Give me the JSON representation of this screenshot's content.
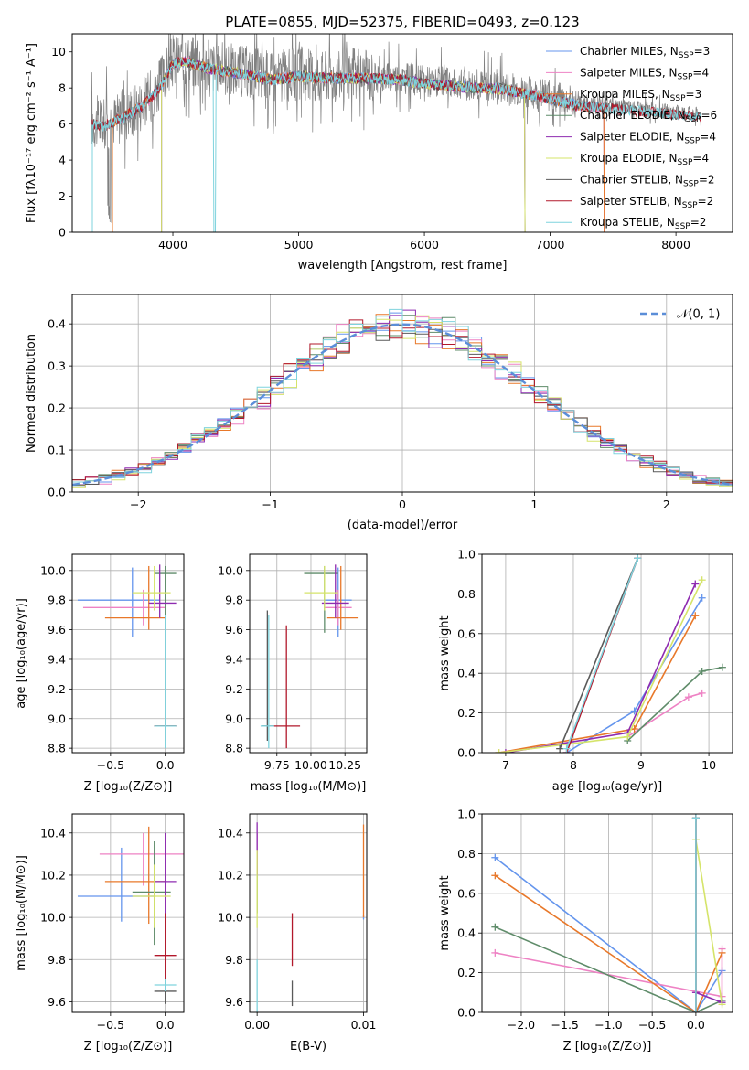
{
  "colors": {
    "Chabrier MILES": "#6495ED",
    "Salpeter MILES": "#EE82C4",
    "Kroupa MILES": "#E8782A",
    "Chabrier ELODIE": "#5F8C6A",
    "Salpeter ELODIE": "#8E2BB0",
    "Kroupa ELODIE": "#D5E46A",
    "Chabrier STELIB": "#5A5A5A",
    "Salpeter STELIB": "#B2182B",
    "Kroupa STELIB": "#7FD3DD",
    "gauss": "#5B8ED8",
    "grid": "#b0b0b0"
  },
  "chart_data": [
    {
      "id": "spectrum",
      "type": "line",
      "title": "PLATE=0855, MJD=52375, FIBERID=0493, z=0.123",
      "xlabel": "wavelength [Angstrom, rest frame]",
      "ylabel": "Flux [fλ10⁻¹⁷ erg cm⁻² s⁻¹ A⁻¹]",
      "xlim": [
        3200,
        8450
      ],
      "ylim": [
        0,
        11
      ],
      "xticks": [
        4000,
        5000,
        6000,
        7000,
        8000
      ],
      "yticks": [
        0,
        2,
        4,
        6,
        8,
        10
      ],
      "grid": false,
      "legend_position": "top-right",
      "legend": [
        {
          "label": "Chabrier MILES, N",
          "sub": "SSP",
          "suffix": "=3",
          "model": "Chabrier MILES"
        },
        {
          "label": "Salpeter MILES, N",
          "sub": "SSP",
          "suffix": "=4",
          "model": "Salpeter MILES"
        },
        {
          "label": "Kroupa MILES, N",
          "sub": "SSP",
          "suffix": "=3",
          "model": "Kroupa MILES"
        },
        {
          "label": "Chabrier ELODIE, N",
          "sub": "SSP",
          "suffix": "=6",
          "model": "Chabrier ELODIE"
        },
        {
          "label": "Salpeter ELODIE, N",
          "sub": "SSP",
          "suffix": "=4",
          "model": "Salpeter ELODIE"
        },
        {
          "label": "Kroupa ELODIE, N",
          "sub": "SSP",
          "suffix": "=4",
          "model": "Kroupa ELODIE"
        },
        {
          "label": "Chabrier STELIB, N",
          "sub": "SSP",
          "suffix": "=2",
          "model": "Chabrier STELIB"
        },
        {
          "label": "Salpeter STELIB, N",
          "sub": "SSP",
          "suffix": "=2",
          "model": "Salpeter STELIB"
        },
        {
          "label": "Kroupa STELIB, N",
          "sub": "SSP",
          "suffix": "=2",
          "model": "Kroupa STELIB"
        }
      ],
      "continuum": {
        "x": [
          3350,
          3450,
          3600,
          3700,
          3800,
          3900,
          4000,
          4100,
          4300,
          4500,
          4800,
          5000,
          5200,
          5500,
          5800,
          6000,
          6300,
          6600,
          6900,
          7200,
          7500,
          7800,
          8100,
          8200
        ],
        "y": [
          6.2,
          6.0,
          6.5,
          6.9,
          7.4,
          8.2,
          9.5,
          9.6,
          9.2,
          9.0,
          8.6,
          8.8,
          8.7,
          8.7,
          8.6,
          8.4,
          8.2,
          8.1,
          7.7,
          7.2,
          7.0,
          6.8,
          6.6,
          6.5
        ]
      },
      "data_series_note": "gray observed spectrum is noisy around the same continuum; models drop to 0 at 3510 (MILES, STELIB), 3900 (ELODIE), 4330 (STELIB Kroupa), 6800 (ELODIE), 7430 (MILES)"
    },
    {
      "id": "residuals",
      "type": "histogram",
      "xlabel": "(data-model)/error",
      "ylabel": "Normed distribution",
      "xlim": [
        -2.5,
        2.5
      ],
      "ylim": [
        0,
        0.47
      ],
      "xticks": [
        -2,
        -1,
        0,
        1,
        2
      ],
      "yticks": [
        0.0,
        0.1,
        0.2,
        0.3,
        0.4
      ],
      "grid": true,
      "legend_position": "top-right",
      "legend": {
        "label": "𝒩(0, 1)"
      },
      "bin_width": 0.1,
      "bin_start": -2.5
    },
    {
      "id": "age_vs_Z",
      "type": "scatter",
      "xlabel": "Z [log₁₀(Z/Z⊙)]",
      "ylabel": "age  [log₁₀(age/yr)]",
      "xlim": [
        -0.85,
        0.17
      ],
      "ylim": [
        8.77,
        10.11
      ],
      "xticks": [
        -0.5,
        0.0
      ],
      "xticklabels": [
        "−0.5",
        "0.0"
      ],
      "yticks": [
        8.8,
        9.0,
        9.2,
        9.4,
        9.6,
        9.8,
        10.0
      ],
      "grid": true,
      "points": [
        {
          "model": "Chabrier MILES",
          "x": -0.3,
          "xerr": [
            0.5,
            0.25
          ],
          "y": 9.8,
          "yerr": [
            0.25,
            0.22
          ]
        },
        {
          "model": "Salpeter MILES",
          "x": -0.2,
          "xerr": [
            0.55,
            0.2
          ],
          "y": 9.75,
          "yerr": [
            0.12,
            0.12
          ]
        },
        {
          "model": "Kroupa MILES",
          "x": -0.15,
          "xerr": [
            0.4,
            0.15
          ],
          "y": 9.68,
          "yerr": [
            0.08,
            0.35
          ]
        },
        {
          "model": "Chabrier ELODIE",
          "x": 0.0,
          "xerr": [
            0.1,
            0.1
          ],
          "y": 9.98,
          "yerr": [
            0.4,
            0.05
          ]
        },
        {
          "model": "Salpeter ELODIE",
          "x": -0.05,
          "xerr": [
            0.1,
            0.15
          ],
          "y": 9.78,
          "yerr": [
            0.1,
            0.26
          ]
        },
        {
          "model": "Kroupa ELODIE",
          "x": -0.1,
          "xerr": [
            0.2,
            0.15
          ],
          "y": 9.85,
          "yerr": [
            0.12,
            0.18
          ]
        },
        {
          "model": "Chabrier STELIB",
          "x": 0.0,
          "xerr": [
            0.1,
            0.1
          ],
          "y": 8.95,
          "yerr": [
            0.1,
            0.7
          ]
        },
        {
          "model": "Salpeter STELIB",
          "x": 0.0,
          "xerr": [
            0.1,
            0.1
          ],
          "y": 8.95,
          "yerr": [
            0.1,
            0.7
          ]
        },
        {
          "model": "Kroupa STELIB",
          "x": 0.0,
          "xerr": [
            0.1,
            0.1
          ],
          "y": 8.95,
          "yerr": [
            0.15,
            0.75
          ]
        }
      ]
    },
    {
      "id": "age_vs_mass",
      "type": "scatter",
      "xlabel": "mass [log₁₀(M/M⊙)]",
      "ylabel": "",
      "xlim": [
        9.55,
        10.41
      ],
      "ylim": [
        8.77,
        10.11
      ],
      "xticks": [
        9.75,
        10.0,
        10.25
      ],
      "xticklabels": [
        "9.75",
        "10.00",
        "10.25"
      ],
      "yticks": [
        8.8,
        9.0,
        9.2,
        9.4,
        9.6,
        9.8,
        10.0
      ],
      "grid": true,
      "points": [
        {
          "model": "Chabrier MILES",
          "x": 10.2,
          "xerr": [
            0.1,
            0.1
          ],
          "y": 9.8,
          "yerr": [
            0.25,
            0.22
          ]
        },
        {
          "model": "Salpeter MILES",
          "x": 10.2,
          "xerr": [
            0.1,
            0.1
          ],
          "y": 9.75,
          "yerr": [
            0.12,
            0.12
          ]
        },
        {
          "model": "Kroupa MILES",
          "x": 10.22,
          "xerr": [
            0.1,
            0.13
          ],
          "y": 9.68,
          "yerr": [
            0.08,
            0.35
          ]
        },
        {
          "model": "Chabrier ELODIE",
          "x": 10.1,
          "xerr": [
            0.15,
            0.1
          ],
          "y": 9.98,
          "yerr": [
            0.4,
            0.05
          ]
        },
        {
          "model": "Salpeter ELODIE",
          "x": 10.18,
          "xerr": [
            0.1,
            0.1
          ],
          "y": 9.78,
          "yerr": [
            0.1,
            0.26
          ]
        },
        {
          "model": "Kroupa ELODIE",
          "x": 10.1,
          "xerr": [
            0.15,
            0.1
          ],
          "y": 9.85,
          "yerr": [
            0.12,
            0.18
          ]
        },
        {
          "model": "Chabrier STELIB",
          "x": 9.68,
          "xerr": [
            0.04,
            0.04
          ],
          "y": 8.95,
          "yerr": [
            0.1,
            0.78
          ]
        },
        {
          "model": "Salpeter STELIB",
          "x": 9.82,
          "xerr": [
            0.1,
            0.1
          ],
          "y": 8.95,
          "yerr": [
            0.15,
            0.68
          ]
        },
        {
          "model": "Kroupa STELIB",
          "x": 9.69,
          "xerr": [
            0.06,
            0.04
          ],
          "y": 8.95,
          "yerr": [
            0.15,
            0.75
          ]
        }
      ]
    },
    {
      "id": "massweight_vs_age",
      "type": "line",
      "xlabel": "age  [log₁₀(age/yr)]",
      "ylabel": "mass weight",
      "xlim": [
        6.65,
        10.35
      ],
      "ylim": [
        0,
        1
      ],
      "xticks": [
        7,
        8,
        9,
        10
      ],
      "yticks": [
        0.0,
        0.2,
        0.4,
        0.6,
        0.8,
        1.0
      ],
      "grid": true,
      "series": [
        {
          "model": "Chabrier MILES",
          "x": [
            7.9,
            8.9,
            9.9
          ],
          "y": [
            0.0,
            0.21,
            0.78
          ]
        },
        {
          "model": "Salpeter MILES",
          "x": [
            8.8,
            9.7,
            9.9
          ],
          "y": [
            0.08,
            0.28,
            0.3
          ]
        },
        {
          "model": "Kroupa MILES",
          "x": [
            6.9,
            8.9,
            9.8
          ],
          "y": [
            0.0,
            0.12,
            0.69
          ]
        },
        {
          "model": "Chabrier ELODIE",
          "x": [
            8.8,
            9.9,
            10.2
          ],
          "y": [
            0.06,
            0.41,
            0.43
          ]
        },
        {
          "model": "Salpeter ELODIE",
          "x": [
            7.0,
            8.8,
            9.8
          ],
          "y": [
            0.0,
            0.1,
            0.85
          ]
        },
        {
          "model": "Kroupa ELODIE",
          "x": [
            6.9,
            8.8,
            9.9
          ],
          "y": [
            0.0,
            0.08,
            0.87
          ]
        },
        {
          "model": "Chabrier STELIB",
          "x": [
            7.8,
            8.95
          ],
          "y": [
            0.02,
            0.98
          ]
        },
        {
          "model": "Salpeter STELIB",
          "x": [
            7.9,
            8.95
          ],
          "y": [
            0.0,
            0.98
          ]
        },
        {
          "model": "Kroupa STELIB",
          "x": [
            7.9,
            8.95
          ],
          "y": [
            0.02,
            0.98
          ]
        }
      ]
    },
    {
      "id": "mass_vs_Z",
      "type": "scatter",
      "xlabel": "Z [log₁₀(Z/Z⊙)]",
      "ylabel": "mass [log₁₀(M/M⊙)]",
      "xlim": [
        -0.85,
        0.17
      ],
      "ylim": [
        9.55,
        10.49
      ],
      "xticks": [
        -0.5,
        0.0
      ],
      "xticklabels": [
        "−0.5",
        "0.0"
      ],
      "yticks": [
        9.6,
        9.8,
        10.0,
        10.2,
        10.4
      ],
      "grid": true,
      "points": [
        {
          "model": "Chabrier MILES",
          "x": -0.4,
          "xerr": [
            0.4,
            0.3
          ],
          "y": 10.1,
          "yerr": [
            0.12,
            0.23
          ]
        },
        {
          "model": "Salpeter MILES",
          "x": -0.2,
          "xerr": [
            0.4,
            0.4
          ],
          "y": 10.3,
          "yerr": [
            0.15,
            0.1
          ]
        },
        {
          "model": "Kroupa MILES",
          "x": -0.15,
          "xerr": [
            0.4,
            0.15
          ],
          "y": 10.17,
          "yerr": [
            0.2,
            0.26
          ]
        },
        {
          "model": "Chabrier ELODIE",
          "x": -0.1,
          "xerr": [
            0.2,
            0.15
          ],
          "y": 10.12,
          "yerr": [
            0.25,
            0.24
          ]
        },
        {
          "model": "Salpeter ELODIE",
          "x": 0.0,
          "xerr": [
            0.1,
            0.1
          ],
          "y": 10.17,
          "yerr": [
            0.15,
            0.23
          ]
        },
        {
          "model": "Kroupa ELODIE",
          "x": -0.1,
          "xerr": [
            0.2,
            0.15
          ],
          "y": 10.1,
          "yerr": [
            0.15,
            0.15
          ]
        },
        {
          "model": "Chabrier STELIB",
          "x": 0.0,
          "xerr": [
            0.1,
            0.1
          ],
          "y": 9.65,
          "yerr": [
            0.06,
            0.05
          ]
        },
        {
          "model": "Salpeter STELIB",
          "x": 0.0,
          "xerr": [
            0.1,
            0.1
          ],
          "y": 9.82,
          "yerr": [
            0.12,
            0.2
          ]
        },
        {
          "model": "Kroupa STELIB",
          "x": 0.0,
          "xerr": [
            0.1,
            0.1
          ],
          "y": 9.68,
          "yerr": [
            0.03,
            0.03
          ]
        }
      ]
    },
    {
      "id": "mass_vs_EBV",
      "type": "scatter",
      "xlabel": "E(B-V)",
      "ylabel": "",
      "xlim": [
        -0.0007,
        0.0103
      ],
      "ylim": [
        9.55,
        10.49
      ],
      "xticks": [
        0.0,
        0.01
      ],
      "xticklabels": [
        "0.00",
        "0.01"
      ],
      "yticks": [
        9.6,
        9.8,
        10.0,
        10.2,
        10.4
      ],
      "grid": true,
      "points": [
        {
          "model": "Chabrier MILES",
          "x": 0.01,
          "xerr": [
            0,
            0
          ],
          "y": 10.0,
          "yerr": [
            0.01,
            0.01
          ]
        },
        {
          "model": "Salpeter MILES",
          "x": 0.0,
          "xerr": [
            0,
            0
          ],
          "y": 10.3,
          "yerr": [
            0.1,
            0.1
          ]
        },
        {
          "model": "Kroupa MILES",
          "x": 0.01,
          "xerr": [
            0,
            0
          ],
          "y": 10.2,
          "yerr": [
            0.2,
            0.24
          ]
        },
        {
          "model": "Chabrier ELODIE",
          "x": 0.0,
          "xerr": [
            0,
            0
          ],
          "y": 10.1,
          "yerr": [
            0.08,
            0.1
          ]
        },
        {
          "model": "Salpeter ELODIE",
          "x": 0.0,
          "xerr": [
            0,
            0
          ],
          "y": 10.3,
          "yerr": [
            0.1,
            0.15
          ]
        },
        {
          "model": "Kroupa ELODIE",
          "x": 0.0,
          "xerr": [
            0,
            0
          ],
          "y": 10.1,
          "yerr": [
            0.15,
            0.22
          ]
        },
        {
          "model": "Chabrier STELIB",
          "x": 0.0033,
          "xerr": [
            0,
            0
          ],
          "y": 9.65,
          "yerr": [
            0.07,
            0.05
          ]
        },
        {
          "model": "Salpeter STELIB",
          "x": 0.0033,
          "xerr": [
            0,
            0
          ],
          "y": 9.9,
          "yerr": [
            0.13,
            0.12
          ]
        },
        {
          "model": "Kroupa STELIB",
          "x": 0.0,
          "xerr": [
            0,
            0
          ],
          "y": 9.7,
          "yerr": [
            0.15,
            0.1
          ]
        }
      ]
    },
    {
      "id": "massweight_vs_Z",
      "type": "line",
      "xlabel": "Z [log₁₀(Z/Z⊙)]",
      "ylabel": "mass weight",
      "xlim": [
        -2.45,
        0.42
      ],
      "ylim": [
        0,
        1
      ],
      "xticks": [
        -2.0,
        -1.5,
        -1.0,
        -0.5,
        0.0
      ],
      "xticklabels": [
        "−2.0",
        "−1.5",
        "−1.0",
        "−0.5",
        "0.0"
      ],
      "yticks": [
        0.0,
        0.2,
        0.4,
        0.6,
        0.8,
        1.0
      ],
      "grid": true,
      "series": [
        {
          "model": "Chabrier MILES",
          "x": [
            -2.3,
            0.0,
            0.3
          ],
          "y": [
            0.78,
            0.0,
            0.21
          ]
        },
        {
          "model": "Salpeter MILES",
          "x": [
            -2.3,
            0.3,
            0.3
          ],
          "y": [
            0.3,
            0.08,
            0.32
          ]
        },
        {
          "model": "Kroupa MILES",
          "x": [
            -2.3,
            0.0,
            0.3
          ],
          "y": [
            0.69,
            0.0,
            0.3
          ]
        },
        {
          "model": "Chabrier ELODIE",
          "x": [
            -2.3,
            0.0,
            0.3
          ],
          "y": [
            0.43,
            0.0,
            0.06
          ]
        },
        {
          "model": "Salpeter ELODIE",
          "x": [
            0.0,
            0.3
          ],
          "y": [
            0.1,
            0.05
          ]
        },
        {
          "model": "Kroupa ELODIE",
          "x": [
            0.0,
            0.3
          ],
          "y": [
            0.87,
            0.04
          ]
        },
        {
          "model": "Chabrier STELIB",
          "x": [
            0.0,
            0.0
          ],
          "y": [
            0.0,
            0.98
          ]
        },
        {
          "model": "Salpeter STELIB",
          "x": [
            0.0,
            0.0
          ],
          "y": [
            0.0,
            0.98
          ]
        },
        {
          "model": "Kroupa STELIB",
          "x": [
            0.0,
            0.0
          ],
          "y": [
            0.0,
            0.98
          ]
        }
      ]
    }
  ]
}
